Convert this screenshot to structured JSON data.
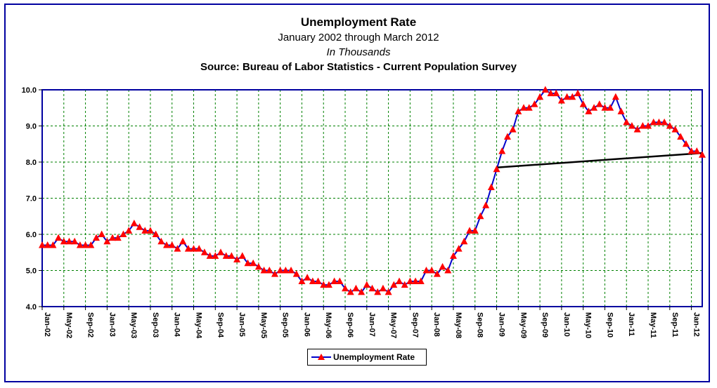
{
  "chart_data": {
    "type": "line",
    "title": "Unemployment Rate",
    "subtitle": "January 2002 through March 2012",
    "subtitle2": "In Thousands",
    "source": "Source: Bureau of Labor Statistics - Current Population Survey",
    "ylim": [
      4.0,
      10.0
    ],
    "y_ticks": [
      "4.0",
      "5.0",
      "6.0",
      "7.0",
      "8.0",
      "9.0",
      "10.0"
    ],
    "x_ticks": [
      "Jan-02",
      "May-02",
      "Sep-02",
      "Jan-03",
      "May-03",
      "Sep-03",
      "Jan-04",
      "May-04",
      "Sep-04",
      "Jan-05",
      "May-05",
      "Sep-05",
      "Jan-06",
      "May-06",
      "Sep-06",
      "Jan-07",
      "May-07",
      "Sep-07",
      "Jan-08",
      "May-08",
      "Sep-08",
      "Jan-09",
      "May-09",
      "Sep-09",
      "Jan-10",
      "May-10",
      "Sep-10",
      "Jan-11",
      "May-11",
      "Sep-11",
      "Jan-12"
    ],
    "grid": true,
    "legend_position": "bottom-center",
    "colors": {
      "line": "#0000cc",
      "marker": "#ff0000",
      "trend": "#000000",
      "frame": "#0000a0",
      "grid": "#008000"
    },
    "series": [
      {
        "name": "Unemployment Rate",
        "start": "Jan-02",
        "values": [
          5.7,
          5.7,
          5.7,
          5.9,
          5.8,
          5.8,
          5.8,
          5.7,
          5.7,
          5.7,
          5.9,
          6.0,
          5.8,
          5.9,
          5.9,
          6.0,
          6.1,
          6.3,
          6.2,
          6.1,
          6.1,
          6.0,
          5.8,
          5.7,
          5.7,
          5.6,
          5.8,
          5.6,
          5.6,
          5.6,
          5.5,
          5.4,
          5.4,
          5.5,
          5.4,
          5.4,
          5.3,
          5.4,
          5.2,
          5.2,
          5.1,
          5.0,
          5.0,
          4.9,
          5.0,
          5.0,
          5.0,
          4.9,
          4.7,
          4.8,
          4.7,
          4.7,
          4.6,
          4.6,
          4.7,
          4.7,
          4.5,
          4.4,
          4.5,
          4.4,
          4.6,
          4.5,
          4.4,
          4.5,
          4.4,
          4.6,
          4.7,
          4.6,
          4.7,
          4.7,
          4.7,
          5.0,
          5.0,
          4.9,
          5.1,
          5.0,
          5.4,
          5.6,
          5.8,
          6.1,
          6.1,
          6.5,
          6.8,
          7.3,
          7.8,
          8.3,
          8.7,
          8.9,
          9.4,
          9.5,
          9.5,
          9.6,
          9.8,
          10.0,
          9.9,
          9.9,
          9.7,
          9.8,
          9.8,
          9.9,
          9.6,
          9.4,
          9.5,
          9.6,
          9.5,
          9.5,
          9.8,
          9.4,
          9.1,
          9.0,
          8.9,
          9.0,
          9.0,
          9.1,
          9.1,
          9.1,
          9.0,
          8.9,
          8.7,
          8.5,
          8.3,
          8.3,
          8.2
        ]
      }
    ],
    "trend_line": {
      "from": {
        "x": "Jan-09",
        "y": 7.85
      },
      "to": {
        "x": "Mar-12",
        "y": 8.25
      }
    }
  }
}
